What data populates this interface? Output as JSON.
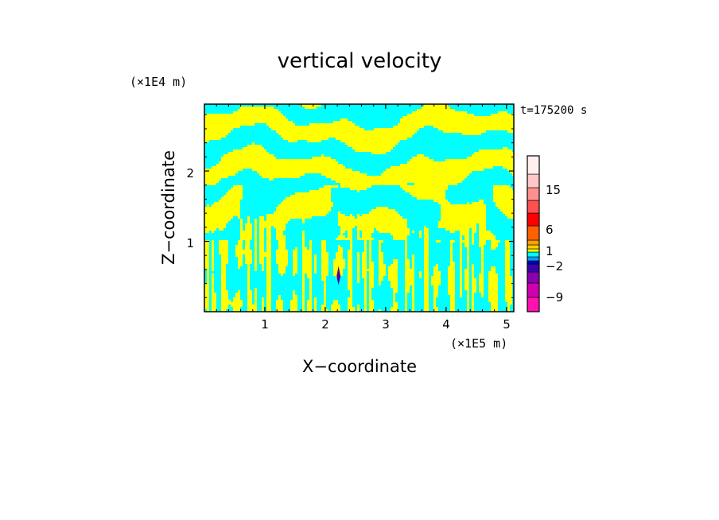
{
  "chart_data": {
    "type": "heatmap",
    "title": "vertical velocity",
    "xlabel": "X−coordinate",
    "ylabel": "Z−coordinate",
    "x_unit": "(×1E5 m)",
    "y_unit": "(×1E4 m)",
    "time_label": "t=175200 s",
    "xlim": [
      0,
      5.12
    ],
    "ylim": [
      0,
      2.95
    ],
    "x_ticks": [
      1,
      2,
      3,
      4,
      5
    ],
    "y_ticks": [
      1,
      2
    ],
    "x_tick_labels": [
      "1",
      "2",
      "3",
      "4",
      "5"
    ],
    "y_tick_labels": [
      "1",
      "2"
    ],
    "grid": false,
    "colorbar": {
      "position": "right",
      "colors": [
        "#ff10b0",
        "#d000b0",
        "#8800b0",
        "#3a00b0",
        "#0000c8",
        "#00a0ff",
        "#00ffff",
        "#ffff00",
        "#ffd000",
        "#ffa000",
        "#ff6000",
        "#ff0000",
        "#ff5050",
        "#ff9090",
        "#ffc8c8",
        "#fff0f0"
      ],
      "tick_labels": [
        "15",
        "6",
        "1",
        "−2",
        "−9"
      ]
    },
    "dominant_fields": [
      {
        "name": "positive",
        "color": "#ffff00"
      },
      {
        "name": "negative",
        "color": "#00ffff"
      }
    ],
    "features": [
      {
        "label": "narrow downdraft core",
        "x": 2.22,
        "z": 0.5,
        "color": "#5000b0"
      }
    ]
  }
}
